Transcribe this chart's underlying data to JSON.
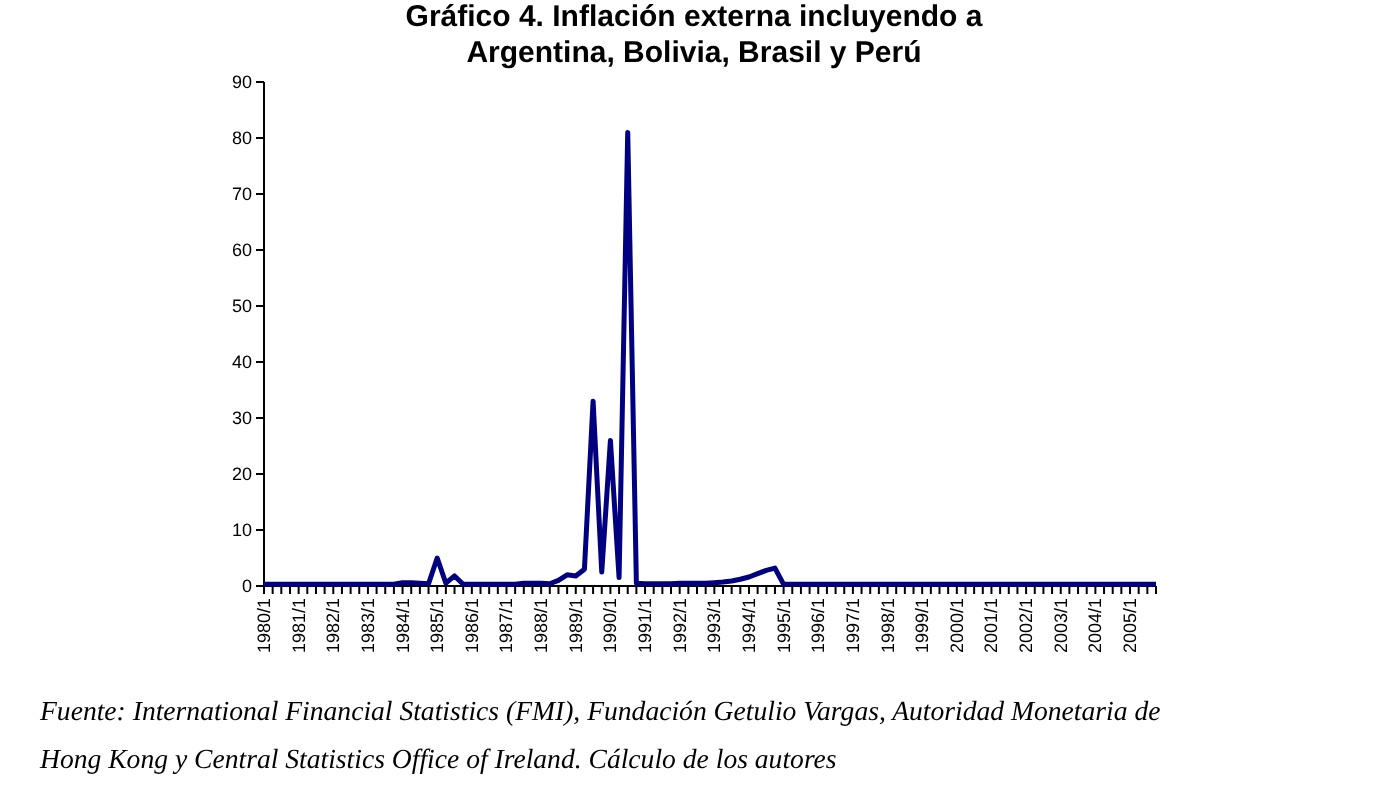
{
  "chart_data": {
    "type": "line",
    "title": "Gráfico 4. Inflación externa incluyendo a\nArgentina, Bolivia, Brasil y Perú",
    "categories": [
      "1980/1",
      null,
      null,
      null,
      "1981/1",
      null,
      null,
      null,
      "1982/1",
      null,
      null,
      null,
      "1983/1",
      null,
      null,
      null,
      "1984/1",
      null,
      null,
      null,
      "1985/1",
      null,
      null,
      null,
      "1986/1",
      null,
      null,
      null,
      "1987/1",
      null,
      null,
      null,
      "1988/1",
      null,
      null,
      null,
      "1989/1",
      null,
      null,
      null,
      "1990/1",
      null,
      null,
      null,
      "1991/1",
      null,
      null,
      null,
      "1992/1",
      null,
      null,
      null,
      "1993/1",
      null,
      null,
      null,
      "1994/1",
      null,
      null,
      null,
      "1995/1",
      null,
      null,
      null,
      "1996/1",
      null,
      null,
      null,
      "1997/1",
      null,
      null,
      null,
      "1998/1",
      null,
      null,
      null,
      "1999/1",
      null,
      null,
      null,
      "2000/1",
      null,
      null,
      null,
      "2001/1",
      null,
      null,
      null,
      "2002/1",
      null,
      null,
      null,
      "2003/1",
      null,
      null,
      null,
      "2004/1",
      null,
      null,
      null,
      "2005/1",
      null,
      null,
      null
    ],
    "series": [
      {
        "color": "#000080",
        "values": [
          0.3,
          0.3,
          0.3,
          0.3,
          0.3,
          0.3,
          0.3,
          0.3,
          0.3,
          0.3,
          0.3,
          0.3,
          0.3,
          0.3,
          0.3,
          0.3,
          0.6,
          0.6,
          0.5,
          0.4,
          5,
          0.5,
          1.8,
          0.3,
          0.3,
          0.3,
          0.3,
          0.3,
          0.3,
          0.3,
          0.5,
          0.5,
          0.5,
          0.4,
          1,
          2,
          1.8,
          3,
          33,
          2.5,
          26,
          1.5,
          81,
          0.5,
          0.4,
          0.4,
          0.4,
          0.4,
          0.5,
          0.5,
          0.5,
          0.5,
          0.6,
          0.7,
          0.9,
          1.2,
          1.6,
          2.2,
          2.8,
          3.2,
          0.3,
          0.3,
          0.3,
          0.3,
          0.3,
          0.3,
          0.3,
          0.3,
          0.3,
          0.3,
          0.3,
          0.3,
          0.3,
          0.3,
          0.3,
          0.3,
          0.3,
          0.3,
          0.3,
          0.3,
          0.3,
          0.3,
          0.3,
          0.3,
          0.3,
          0.3,
          0.3,
          0.3,
          0.3,
          0.3,
          0.3,
          0.3,
          0.3,
          0.3,
          0.3,
          0.3,
          0.3,
          0.3,
          0.3,
          0.3,
          0.3,
          0.3,
          0.3,
          0.3
        ]
      }
    ],
    "ylim": [
      0,
      90
    ],
    "yticks": [
      0,
      10,
      20,
      30,
      40,
      50,
      60,
      70,
      80,
      90
    ],
    "grid": false,
    "marker": "none",
    "line_style": "solid",
    "annotations": [
      "Fuente: International Financial Statistics (FMI), Fundación Getulio Vargas, Autoridad Monetaria de Hong Kong y Central Statistics Office of Ireland. Cálculo de los autores"
    ]
  }
}
